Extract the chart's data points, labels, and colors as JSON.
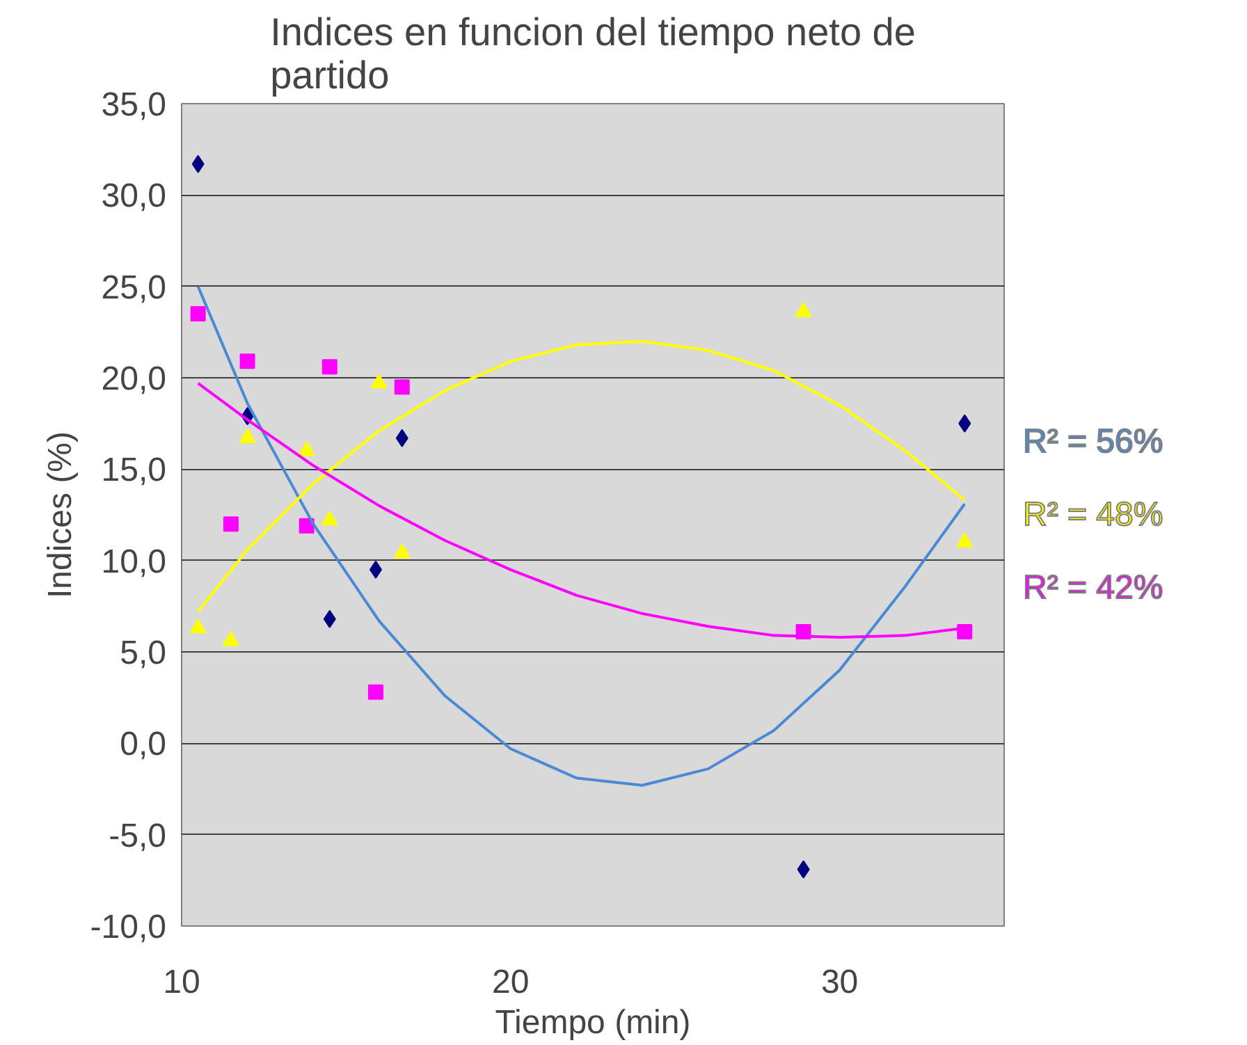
{
  "chart_data": {
    "type": "scatter",
    "title": "Indices en funcion del tiempo neto de partido",
    "xlabel": "Tiempo (min)",
    "ylabel": "Indices (%)",
    "xlim": [
      10,
      35
    ],
    "xticks": [
      10,
      20,
      30
    ],
    "ylim": [
      -10,
      35
    ],
    "yticks": [
      {
        "value": -10,
        "label": "-10,0"
      },
      {
        "value": -5,
        "label": "-5,0"
      },
      {
        "value": 0,
        "label": "0,0"
      },
      {
        "value": 5,
        "label": "5,0"
      },
      {
        "value": 10,
        "label": "10,0"
      },
      {
        "value": 15,
        "label": "15,0"
      },
      {
        "value": 20,
        "label": "20,0"
      },
      {
        "value": 25,
        "label": "25,0"
      },
      {
        "value": 30,
        "label": "30,0"
      },
      {
        "value": 35,
        "label": "35,0"
      }
    ],
    "grid": "y",
    "series": [
      {
        "marker": "diamond",
        "color": "#000080",
        "x": [
          10.5,
          12.0,
          16.7,
          15.9,
          33.8,
          14.5,
          28.9
        ],
        "values": [
          31.7,
          17.9,
          16.7,
          9.5,
          17.5,
          6.8,
          -6.9
        ]
      },
      {
        "marker": "triangle",
        "color": "#ffff00",
        "x": [
          12.0,
          13.8,
          16.0,
          14.5,
          16.7,
          28.9,
          33.8,
          10.5,
          11.5
        ],
        "values": [
          16.7,
          16.0,
          19.7,
          12.2,
          10.4,
          23.6,
          11.0,
          6.3,
          5.6
        ]
      },
      {
        "marker": "square",
        "color": "#ff00ff",
        "x": [
          10.5,
          12.0,
          14.5,
          16.7,
          11.5,
          13.8,
          28.9,
          33.8,
          15.9
        ],
        "values": [
          23.5,
          20.9,
          20.6,
          19.5,
          12.0,
          11.9,
          6.1,
          6.1,
          2.8
        ]
      },
      {
        "type": "line",
        "name": "R² = 56%",
        "color": "#4a8ad4",
        "x": [
          10.5,
          12,
          14,
          16,
          18,
          20,
          22,
          24,
          26,
          28,
          30,
          32,
          33.8
        ],
        "values": [
          25.0,
          18.6,
          12.0,
          6.7,
          2.6,
          -0.3,
          -1.9,
          -2.3,
          -1.4,
          0.7,
          4.0,
          8.6,
          13.1
        ]
      },
      {
        "type": "line",
        "name": "R² = 48%",
        "color": "#ffff00",
        "x": [
          10.5,
          12,
          14,
          16,
          18,
          20,
          22,
          24,
          26,
          28,
          30,
          32,
          33.8
        ],
        "values": [
          7.2,
          10.6,
          14.2,
          17.1,
          19.3,
          20.9,
          21.8,
          22.0,
          21.5,
          20.4,
          18.5,
          16.0,
          13.3
        ]
      },
      {
        "type": "line",
        "name": "R² = 42%",
        "color": "#ff00ff",
        "x": [
          10.5,
          12,
          14,
          16,
          18,
          20,
          22,
          24,
          26,
          28,
          30,
          32,
          33.8
        ],
        "values": [
          19.7,
          17.7,
          15.2,
          13.0,
          11.1,
          9.5,
          8.1,
          7.1,
          6.4,
          5.9,
          5.8,
          5.9,
          6.3
        ]
      }
    ]
  }
}
